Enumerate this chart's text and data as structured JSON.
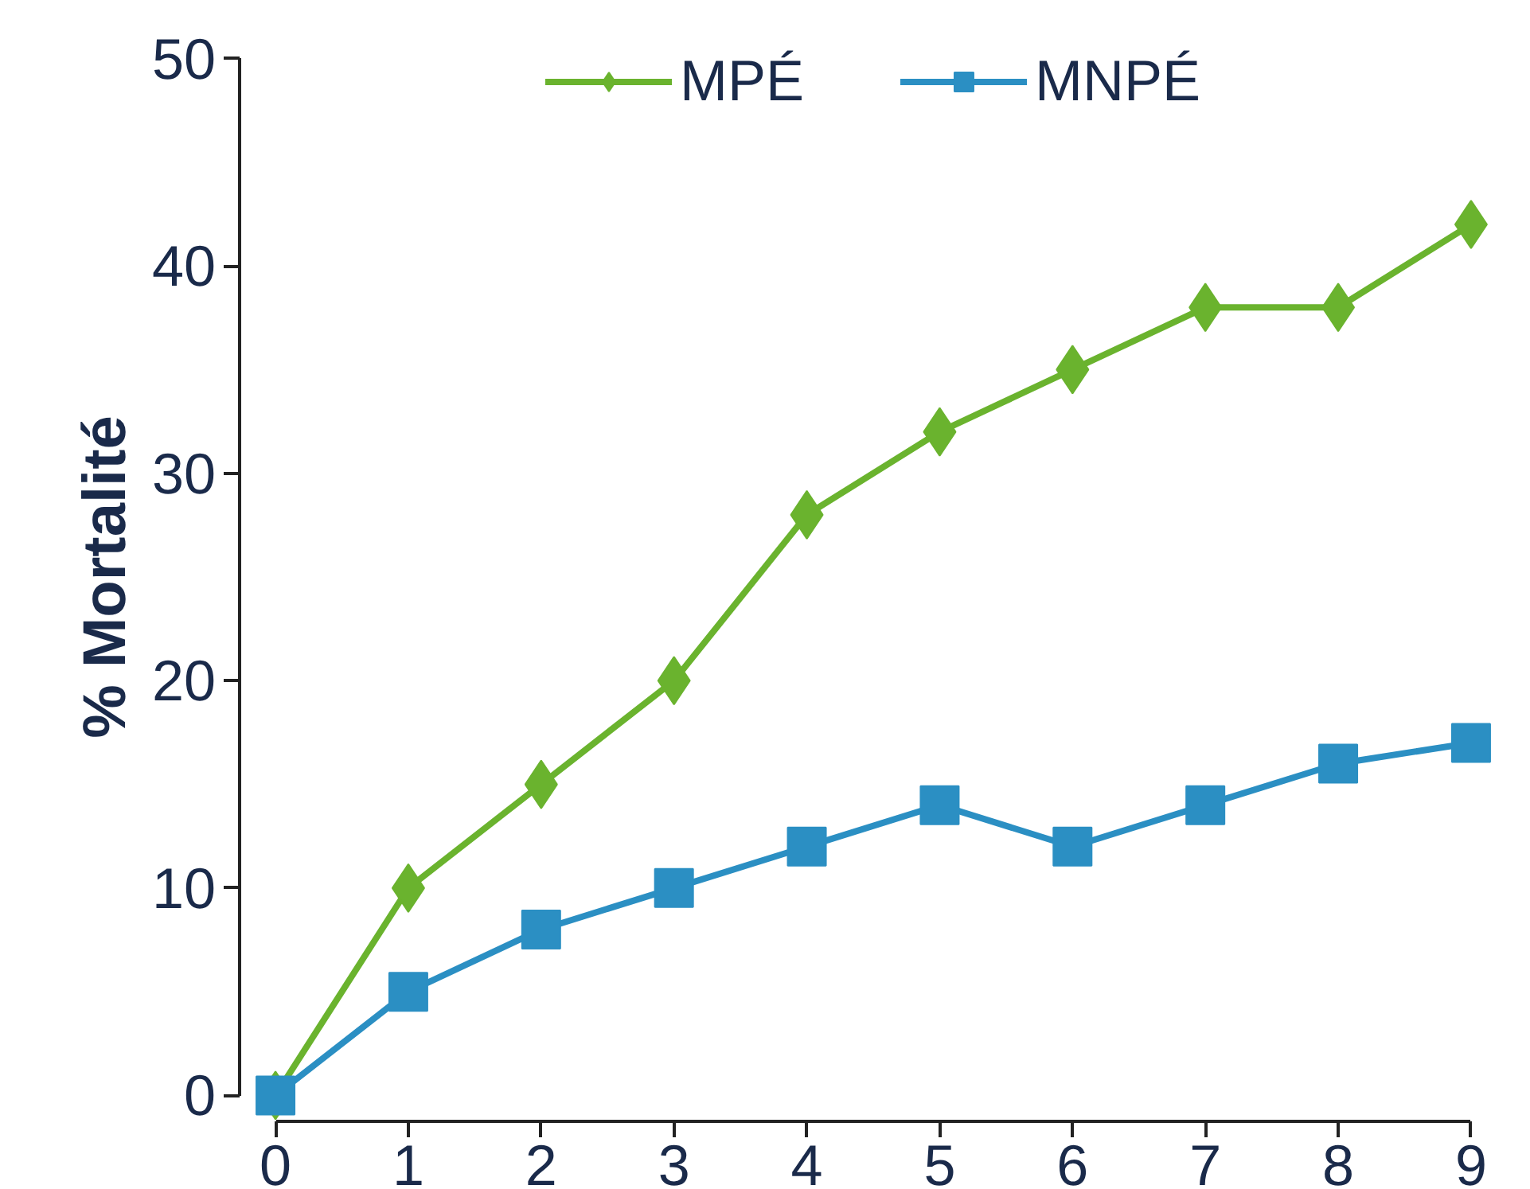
{
  "chart_data": {
    "type": "line",
    "ylabel": "% Mortalité",
    "x": [
      0,
      1,
      2,
      3,
      4,
      5,
      6,
      7,
      8,
      9
    ],
    "series": [
      {
        "name": "MPÉ",
        "color": "#6ab32e",
        "marker": "diamond",
        "values": [
          0,
          10,
          15,
          20,
          28,
          32,
          35,
          38,
          38,
          42
        ]
      },
      {
        "name": "MNPÉ",
        "color": "#2b8fc3",
        "marker": "square",
        "values": [
          0,
          5,
          8,
          10,
          12,
          14,
          12,
          14,
          16,
          17
        ]
      }
    ],
    "xlim": [
      0,
      9
    ],
    "ylim": [
      0,
      50
    ],
    "xticks": [
      0,
      1,
      2,
      3,
      4,
      5,
      6,
      7,
      8,
      9
    ],
    "yticks": [
      0,
      10,
      20,
      30,
      40,
      50
    ],
    "grid": false,
    "legend": "top",
    "line_style": "solid"
  }
}
